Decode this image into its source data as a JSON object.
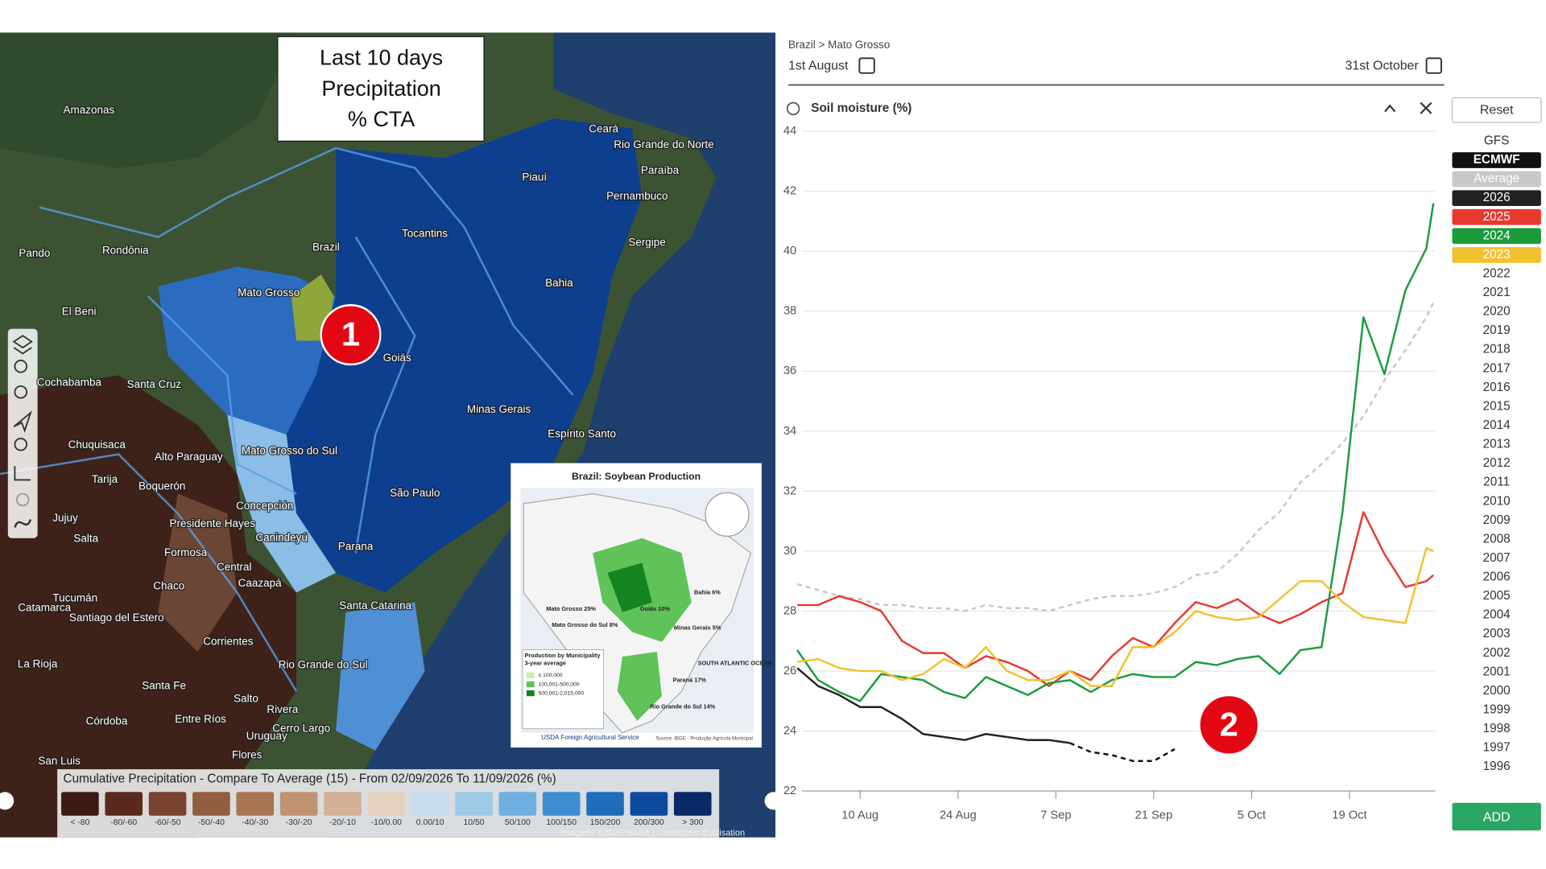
{
  "map": {
    "labels": [
      "Amazonas",
      "Brazil",
      "Mato Grosso",
      "Rondônia",
      "Pando",
      "El Beni",
      "Tocantins",
      "Piauí",
      "Ceará",
      "Rio Grande do Norte",
      "Paraíba",
      "Pernambuco",
      "Sergipe",
      "Bahia",
      "Goiás",
      "Minas Gerais",
      "Espírito Santo",
      "Mato Grosso do Sul",
      "São Paulo",
      "Parana",
      "Santa Catarina",
      "Rio Grande do Sul",
      "Santa Cruz",
      "Cochabamba",
      "Chuquisaca",
      "Alto Paraguay",
      "Tarija",
      "Boquerón",
      "Concepción",
      "Presidente Hayes",
      "Canindeyú",
      "Jujuy",
      "Salta",
      "Formosa",
      "Central",
      "Caazapá",
      "Chaco",
      "Tucumán",
      "Catamarca",
      "Santiago del Estero",
      "Corrientes",
      "La Rioja",
      "Santa Fe",
      "Salto",
      "Rivera",
      "Córdoba",
      "Entre Ríos",
      "Cerro Largo",
      "Uruguay",
      "Flores",
      "San Luis"
    ],
    "legend": {
      "title": "Cumulative Precipitation - Compare To Average (15) - From 02/09/2026 To 11/09/2026 (%)",
      "bins": [
        {
          "label": "< -80",
          "color": "#3b1a14"
        },
        {
          "label": "-80/-60",
          "color": "#5a2a1e"
        },
        {
          "label": "-60/-50",
          "color": "#7a4330"
        },
        {
          "label": "-50/-40",
          "color": "#925e40"
        },
        {
          "label": "-40/-30",
          "color": "#a87652"
        },
        {
          "label": "-30/-20",
          "color": "#c09373"
        },
        {
          "label": "-20/-10",
          "color": "#d3b197"
        },
        {
          "label": "-10/0.00",
          "color": "#e6d2c0"
        },
        {
          "label": "0.00/10",
          "color": "#c9dcf0"
        },
        {
          "label": "10/50",
          "color": "#9fcbe9"
        },
        {
          "label": "50/100",
          "color": "#6fb0e0"
        },
        {
          "label": "100/150",
          "color": "#3d8dd0"
        },
        {
          "label": "150/200",
          "color": "#1f6cbd"
        },
        {
          "label": "200/300",
          "color": "#0e4b9f"
        },
        {
          "label": "> 300",
          "color": "#0a2a66"
        }
      ]
    },
    "attribution": "Imagerie ©2026 NASA | Conditions d'utilisation",
    "callout": [
      "Last 10 days",
      "Precipitation",
      "% CTA"
    ]
  },
  "inset": {
    "title": "Brazil: Soybean Production",
    "labels": [
      "Mato Grosso 25%",
      "Mato Grosso do Sul 8%",
      "Goiás 10%",
      "Minas Gerais 5%",
      "Bahia 6%",
      "Paraná 17%",
      "Rio Grande do Sul 14%",
      "SOUTH ATLANTIC OCEAN"
    ],
    "legend_title": "Production by Municipality",
    "legend_subtitle": "3-year average",
    "legend_items": [
      {
        "label": "≤ 100,000",
        "color": "#c6efb4"
      },
      {
        "label": "100,001-500,000",
        "color": "#5fc35a"
      },
      {
        "label": "500,001-2,015,000",
        "color": "#13841f"
      }
    ],
    "agency": "USDA Foreign Agricultural Service",
    "source": "Source: IBGE - Produção Agrícola Municipal"
  },
  "annotations": [
    "1",
    "2"
  ],
  "ui": {
    "breadcrumb": "Brazil > Mato Grosso",
    "start": "1st August",
    "end": "31st October",
    "reset": "Reset",
    "add": "ADD"
  },
  "chart_data": {
    "type": "line",
    "title": "Soil moisture (%)",
    "x": [
      1,
      4,
      7,
      10,
      13,
      16,
      19,
      22,
      25,
      28,
      31,
      34,
      37,
      40,
      43,
      46,
      49,
      52,
      55,
      58,
      61,
      64,
      67,
      70,
      73,
      76,
      79,
      82,
      85,
      88,
      91,
      92
    ],
    "xlim": [
      1,
      92
    ],
    "xticks": [
      {
        "value": 10,
        "label": "10 Aug"
      },
      {
        "value": 24,
        "label": "24 Aug"
      },
      {
        "value": 38,
        "label": "7 Sep"
      },
      {
        "value": 52,
        "label": "21 Sep"
      },
      {
        "value": 66,
        "label": "5 Oct"
      },
      {
        "value": 80,
        "label": "19 Oct"
      }
    ],
    "ylim": [
      22,
      44
    ],
    "yticks": [
      22,
      24,
      26,
      28,
      30,
      32,
      34,
      36,
      38,
      40,
      42,
      44
    ],
    "grid": true,
    "legend_extra_top": [
      "GFS"
    ],
    "legend_extra": [
      "2022",
      "2021",
      "2020",
      "2019",
      "2018",
      "2017",
      "2016",
      "2015",
      "2014",
      "2013",
      "2012",
      "2011",
      "2010",
      "2009",
      "2008",
      "2007",
      "2006",
      "2005",
      "2004",
      "2003",
      "2002",
      "2001",
      "2000",
      "1999",
      "1998",
      "1997",
      "1996"
    ],
    "series": [
      {
        "name": "ECMWF",
        "color": "#111111",
        "dash": true,
        "values": [
          null,
          null,
          null,
          null,
          null,
          null,
          null,
          null,
          null,
          null,
          null,
          null,
          null,
          23.6,
          23.3,
          23.2,
          23.0,
          23.0,
          23.4,
          null,
          null,
          null,
          null,
          null,
          null,
          null,
          null,
          null,
          null,
          null,
          null,
          null
        ]
      },
      {
        "name": "Average",
        "color": "#c8c8c8",
        "dash": true,
        "values": [
          28.9,
          28.7,
          28.5,
          28.4,
          28.2,
          28.2,
          28.1,
          28.1,
          28.0,
          28.2,
          28.1,
          28.1,
          28.0,
          28.2,
          28.4,
          28.5,
          28.5,
          28.6,
          28.8,
          29.2,
          29.3,
          29.9,
          30.7,
          31.3,
          32.3,
          32.9,
          33.6,
          34.5,
          35.7,
          36.7,
          37.8,
          38.3
        ]
      },
      {
        "name": "2026",
        "color": "#222222",
        "values": [
          26.1,
          25.5,
          25.2,
          24.8,
          24.8,
          24.4,
          23.9,
          23.8,
          23.7,
          23.9,
          23.8,
          23.7,
          23.7,
          23.6,
          null,
          null,
          null,
          null,
          null,
          null,
          null,
          null,
          null,
          null,
          null,
          null,
          null,
          null,
          null,
          null,
          null,
          null
        ]
      },
      {
        "name": "2025",
        "color": "#e8392f",
        "values": [
          28.2,
          28.2,
          28.5,
          28.3,
          28.0,
          27.0,
          26.6,
          26.6,
          26.1,
          26.5,
          26.3,
          26.0,
          25.5,
          26.0,
          25.7,
          26.5,
          27.1,
          26.8,
          27.6,
          28.3,
          28.1,
          28.4,
          27.9,
          27.6,
          27.9,
          28.3,
          28.6,
          31.3,
          29.9,
          28.8,
          29.0,
          29.2
        ]
      },
      {
        "name": "2024",
        "color": "#1a9c3a",
        "values": [
          26.7,
          25.7,
          25.3,
          25.0,
          25.9,
          25.8,
          25.7,
          25.3,
          25.1,
          25.8,
          25.5,
          25.2,
          25.6,
          25.7,
          25.3,
          25.7,
          25.9,
          25.8,
          25.8,
          26.3,
          26.2,
          26.4,
          26.5,
          25.9,
          26.7,
          26.8,
          31.3,
          37.8,
          35.9,
          38.7,
          40.1,
          41.6
        ]
      },
      {
        "name": "2023",
        "color": "#f2c12e",
        "values": [
          26.3,
          26.4,
          26.1,
          26.0,
          26.0,
          25.7,
          25.9,
          26.4,
          26.1,
          26.8,
          26.0,
          25.7,
          25.7,
          26.0,
          25.5,
          25.5,
          26.8,
          26.8,
          27.3,
          28.0,
          27.8,
          27.7,
          27.8,
          28.4,
          29.0,
          29.0,
          28.3,
          27.8,
          27.7,
          27.6,
          30.1,
          30.0
        ]
      }
    ]
  }
}
